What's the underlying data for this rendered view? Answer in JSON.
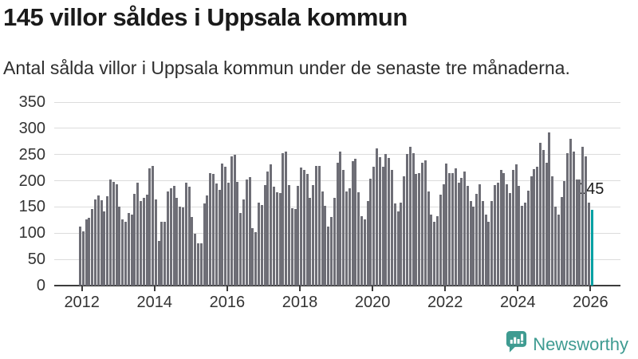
{
  "header": {
    "title": "145 villor såldes i Uppsala kommun",
    "subtitle": "Antal sålda villor i Uppsala kommun under de senaste tre månaderna."
  },
  "chart_data": {
    "type": "bar",
    "title": "145 villor såldes i Uppsala kommun",
    "subtitle": "Antal sålda villor i Uppsala kommun under de senaste tre månaderna.",
    "xlabel": "",
    "ylabel": "",
    "x_start": "2012-01",
    "x_end": "2026-02",
    "x_frequency": "monthly",
    "x_tick_labels": [
      "2012",
      "2014",
      "2016",
      "2018",
      "2020",
      "2022",
      "2024",
      "2026"
    ],
    "y_ticks": [
      0,
      50,
      100,
      150,
      200,
      250,
      300,
      350
    ],
    "ylim": [
      0,
      350
    ],
    "grid": true,
    "values": [
      113,
      104,
      126,
      130,
      146,
      164,
      172,
      163,
      141,
      171,
      202,
      198,
      193,
      151,
      127,
      121,
      139,
      136,
      175,
      197,
      162,
      167,
      174,
      223,
      228,
      164,
      85,
      121,
      121,
      180,
      186,
      190,
      168,
      151,
      149,
      197,
      188,
      131,
      99,
      80,
      81,
      157,
      172,
      215,
      213,
      195,
      182,
      233,
      226,
      197,
      246,
      249,
      198,
      139,
      164,
      202,
      207,
      110,
      102,
      158,
      154,
      191,
      218,
      232,
      188,
      178,
      177,
      252,
      256,
      192,
      147,
      146,
      190,
      225,
      220,
      213,
      167,
      191,
      229,
      229,
      180,
      152,
      113,
      131,
      168,
      234,
      256,
      220,
      180,
      186,
      237,
      242,
      178,
      132,
      126,
      161,
      204,
      227,
      261,
      245,
      227,
      251,
      244,
      220,
      157,
      142,
      159,
      209,
      251,
      265,
      252,
      213,
      215,
      234,
      239,
      180,
      135,
      121,
      132,
      173,
      193,
      233,
      215,
      215,
      224,
      196,
      205,
      218,
      190,
      161,
      150,
      175,
      193,
      161,
      135,
      122,
      161,
      191,
      196,
      220,
      214,
      193,
      177,
      220,
      232,
      190,
      152,
      158,
      181,
      209,
      222,
      227,
      273,
      258,
      234,
      292,
      208,
      151,
      135,
      169,
      200,
      253,
      280,
      255,
      203,
      202,
      265,
      246,
      159,
      145
    ],
    "highlight_last_bar": true,
    "annotation": {
      "label": "145",
      "value": 145
    }
  },
  "colors": {
    "bar": "#6e6e76",
    "highlight": "#00a0a3",
    "grid": "#dcdcdc",
    "axis": "#3c3c3c",
    "brand": "#3e9b91"
  },
  "footer": {
    "brand": "Newsworthy"
  }
}
